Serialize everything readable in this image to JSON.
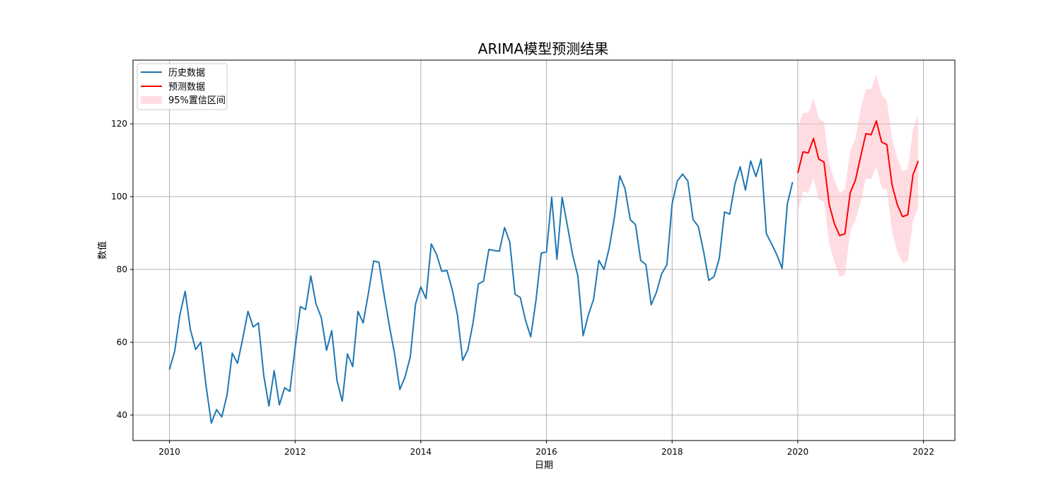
{
  "chart_data": {
    "type": "line",
    "title": "ARIMA模型预测结果",
    "xlabel": "日期",
    "ylabel": "数值",
    "xlim": [
      2009.42,
      2022.5
    ],
    "ylim": [
      33,
      137.5
    ],
    "x_ticks": [
      2010,
      2012,
      2014,
      2016,
      2018,
      2020,
      2022
    ],
    "x_tick_labels": [
      "2010",
      "2012",
      "2014",
      "2016",
      "2018",
      "2020",
      "2022"
    ],
    "y_ticks": [
      40,
      60,
      80,
      100,
      120
    ],
    "y_tick_labels": [
      "40",
      "60",
      "80",
      "100",
      "120"
    ],
    "grid": true,
    "legend_position": "upper-left",
    "legend": {
      "history": "历史数据",
      "forecast": "预测数据",
      "ci": "95%置信区间"
    },
    "colors": {
      "history": "#1f77b4",
      "forecast": "#ff0000",
      "ci": "#ffc0cb"
    },
    "history": {
      "name": "历史数据",
      "start": "2010-01",
      "frequency": "monthly",
      "values": [
        52.5,
        57.5,
        67.5,
        74.0,
        63.5,
        58.0,
        60.0,
        48.0,
        37.8,
        41.5,
        39.5,
        45.5,
        57.0,
        54.2,
        61.0,
        68.5,
        64.2,
        65.3,
        51.0,
        42.5,
        52.2,
        42.8,
        47.5,
        46.5,
        58.5,
        69.8,
        69.0,
        78.2,
        70.5,
        66.8,
        57.8,
        63.2,
        49.5,
        43.8,
        56.8,
        53.3,
        68.5,
        65.3,
        73.5,
        82.3,
        82.0,
        73.0,
        64.5,
        56.8,
        47.0,
        50.5,
        56.0,
        70.5,
        75.2,
        72.0,
        87.0,
        84.2,
        79.5,
        79.7,
        74.5,
        67.5,
        55.0,
        58.0,
        65.5,
        76.0,
        76.8,
        85.5,
        85.2,
        85.0,
        91.5,
        87.5,
        73.2,
        72.3,
        66.0,
        61.5,
        71.5,
        84.5,
        84.8,
        99.8,
        82.8,
        99.8,
        92.0,
        84.0,
        78.2,
        61.8,
        67.5,
        71.8,
        82.5,
        80.0,
        86.0,
        94.5,
        105.7,
        102.2,
        93.7,
        92.3,
        82.5,
        81.3,
        70.3,
        73.7,
        78.8,
        81.3,
        98.0,
        104.3,
        106.2,
        104.3,
        93.7,
        91.8,
        85.0,
        77.0,
        78.0,
        83.0,
        95.8,
        95.2,
        103.5,
        108.2,
        101.8,
        109.8,
        105.5,
        110.3,
        89.8,
        87.0,
        84.0,
        80.3,
        98.0,
        104.0
      ]
    },
    "forecast": {
      "name": "预测数据",
      "start": "2020-01",
      "frequency": "monthly",
      "values": [
        106.5,
        112.3,
        112.0,
        116.0,
        110.3,
        109.5,
        97.8,
        92.5,
        89.3,
        89.8,
        101.0,
        104.5,
        111.0,
        117.3,
        117.0,
        120.8,
        115.0,
        114.3,
        103.2,
        97.8,
        94.5,
        95.0,
        106.0,
        109.8
      ],
      "ci_upper": [
        119.0,
        123.0,
        123.0,
        127.0,
        121.5,
        120.5,
        109.0,
        104.5,
        101.0,
        102.0,
        112.5,
        116.0,
        124.0,
        129.5,
        129.5,
        133.5,
        128.0,
        126.5,
        116.0,
        110.5,
        107.0,
        107.5,
        118.5,
        122.5
      ],
      "ci_lower": [
        95.5,
        101.5,
        101.0,
        105.0,
        99.2,
        98.5,
        87.0,
        82.0,
        78.0,
        78.5,
        90.5,
        93.5,
        98.5,
        105.0,
        104.8,
        108.2,
        102.5,
        101.8,
        90.5,
        84.8,
        81.8,
        82.3,
        93.5,
        97.0
      ]
    }
  }
}
